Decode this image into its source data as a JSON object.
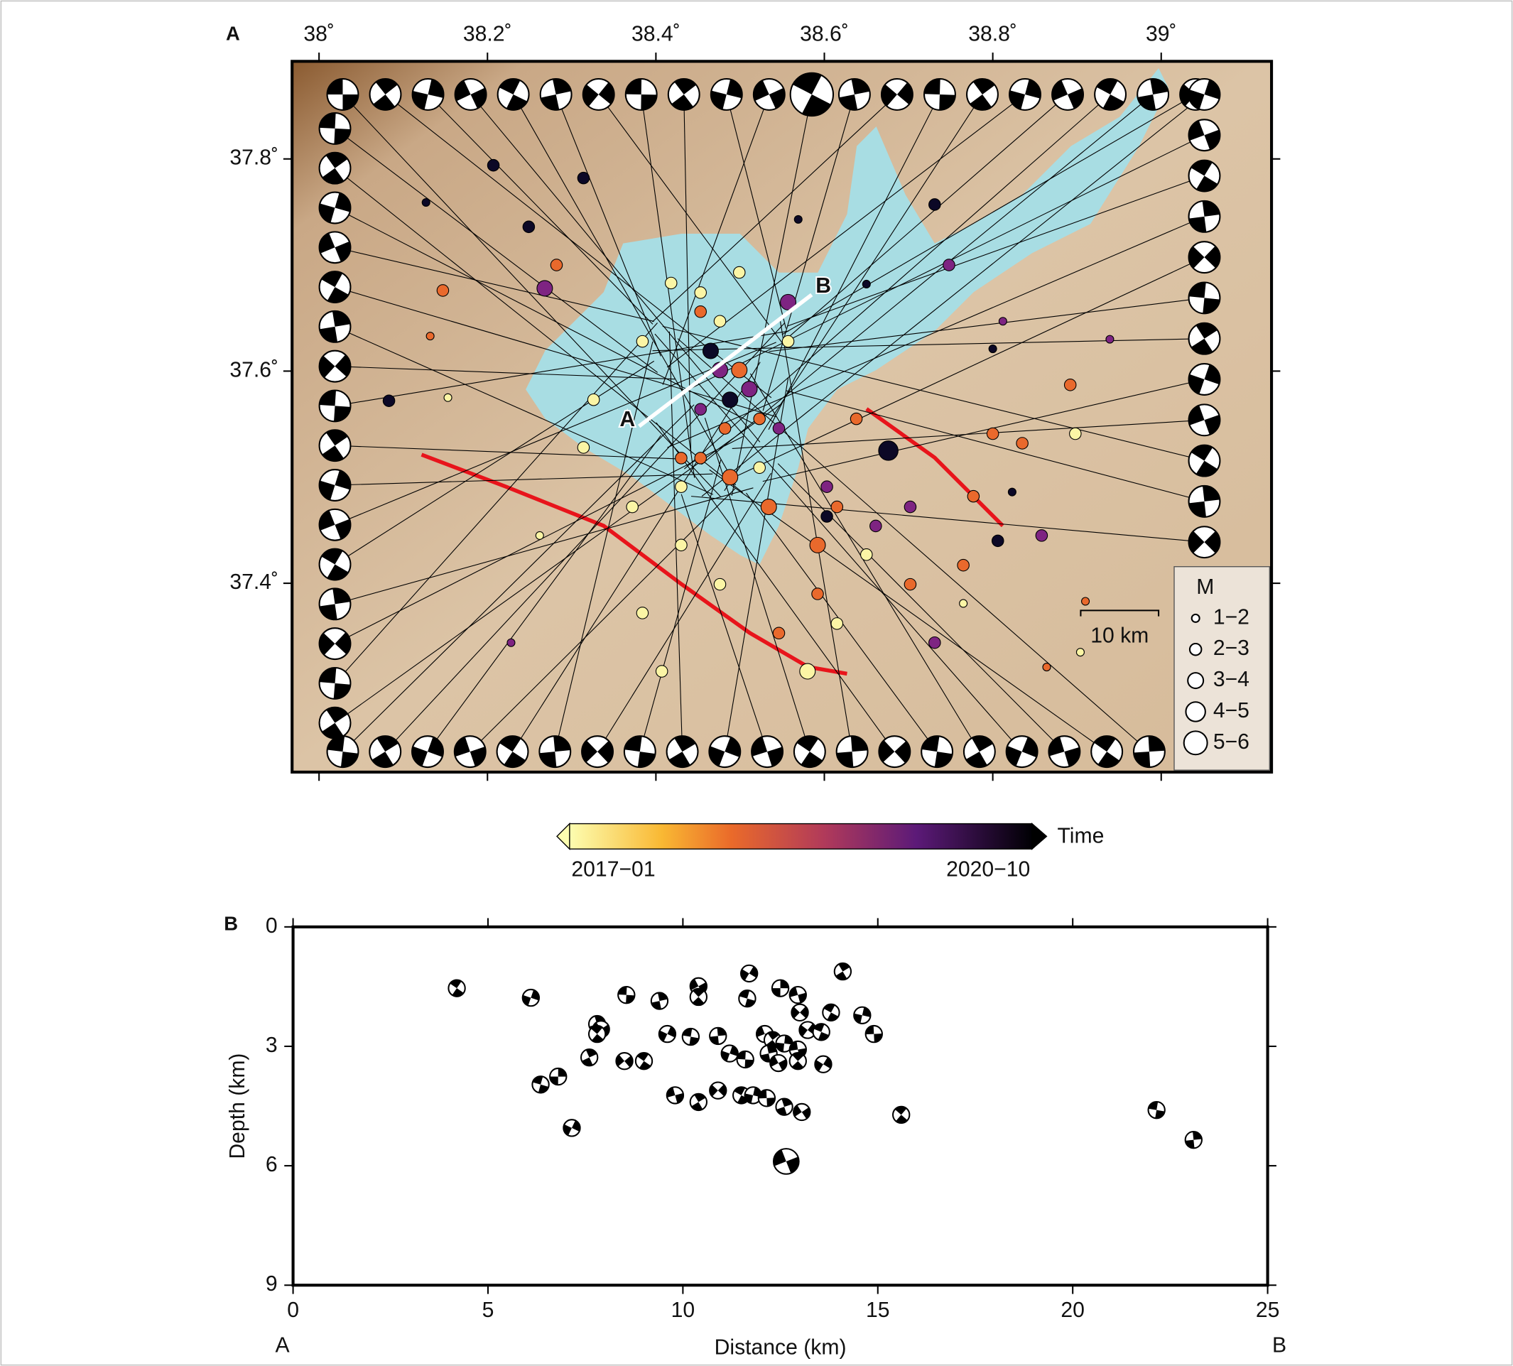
{
  "chart_data": [
    {
      "type": "map",
      "panel_label": "A",
      "xlim": [
        37.968,
        39.131
      ],
      "ylim": [
        37.222,
        37.892
      ],
      "xticks": [
        {
          "value": 38,
          "label": "38˚"
        },
        {
          "value": 38.2,
          "label": "38.2˚"
        },
        {
          "value": 38.4,
          "label": "38.4˚"
        },
        {
          "value": 38.6,
          "label": "38.6˚"
        },
        {
          "value": 38.8,
          "label": "38.8˚"
        },
        {
          "value": 39,
          "label": "39˚"
        }
      ],
      "yticks": [
        {
          "value": 37.4,
          "label": "37.4˚"
        },
        {
          "value": 37.6,
          "label": "37.6˚"
        },
        {
          "value": 37.8,
          "label": "37.8˚"
        }
      ],
      "grid": false,
      "series": [
        {
          "color": "#fbf5a5",
          "x": [
            38.418,
            38.384,
            38.326,
            38.314,
            38.372,
            38.43,
            38.476,
            38.407,
            38.58,
            38.615,
            38.65,
            38.453,
            38.499,
            38.557,
            38.262,
            38.153,
            38.523,
            38.476,
            38.43,
            38.384,
            38.765,
            38.904,
            38.898
          ],
          "y": [
            37.683,
            37.628,
            37.573,
            37.528,
            37.472,
            37.436,
            37.399,
            37.317,
            37.317,
            37.362,
            37.427,
            37.674,
            37.693,
            37.628,
            37.445,
            37.575,
            37.509,
            37.647,
            37.491,
            37.372,
            37.381,
            37.335,
            37.541
          ],
          "sizes": [
            2.5,
            2.5,
            2.5,
            2.5,
            2.5,
            2.5,
            2.5,
            2.5,
            3.5,
            2.5,
            2.5,
            2.5,
            2.5,
            2.5,
            1.5,
            1.5,
            2.5,
            2.5,
            2.5,
            2.5,
            1.5,
            1.5,
            2.5
          ]
        },
        {
          "color": "#e9692c",
          "x": [
            38.453,
            38.499,
            38.482,
            38.43,
            38.534,
            38.592,
            38.592,
            38.546,
            38.892,
            38.835,
            38.777,
            38.8,
            38.147,
            38.132,
            38.282,
            38.91,
            38.864,
            38.453,
            38.523,
            38.488,
            38.638,
            38.615,
            38.702,
            38.765
          ],
          "y": [
            37.656,
            37.601,
            37.546,
            37.518,
            37.472,
            37.436,
            37.39,
            37.353,
            37.587,
            37.532,
            37.482,
            37.541,
            37.676,
            37.633,
            37.7,
            37.383,
            37.321,
            37.518,
            37.555,
            37.5,
            37.555,
            37.472,
            37.399,
            37.417
          ],
          "sizes": [
            2.5,
            3.5,
            2.5,
            2.5,
            3.5,
            3.5,
            2.5,
            2.5,
            2.5,
            2.5,
            2.5,
            2.5,
            2.5,
            1.5,
            2.5,
            1.5,
            1.5,
            2.5,
            2.5,
            3.5,
            2.5,
            2.5,
            2.5,
            2.5
          ]
        },
        {
          "color": "#7e2482",
          "x": [
            38.268,
            38.557,
            38.511,
            38.453,
            38.546,
            38.748,
            38.812,
            38.939,
            38.702,
            38.858,
            38.731,
            38.661,
            38.603,
            38.476,
            38.228
          ],
          "y": [
            37.678,
            37.665,
            37.583,
            37.564,
            37.546,
            37.7,
            37.647,
            37.63,
            37.472,
            37.445,
            37.344,
            37.454,
            37.491,
            37.601,
            37.344
          ],
          "sizes": [
            3.5,
            3.5,
            3.5,
            2.5,
            2.5,
            2.5,
            1.5,
            1.5,
            2.5,
            2.5,
            2.5,
            2.5,
            2.5,
            3.5,
            1.5
          ]
        },
        {
          "color": "#0c0826",
          "x": [
            38.676,
            38.207,
            38.314,
            38.249,
            38.127,
            38.731,
            38.806,
            38.8,
            38.603,
            38.569,
            38.465,
            38.488,
            38.083,
            38.65,
            38.823
          ],
          "y": [
            37.525,
            37.794,
            37.782,
            37.736,
            37.759,
            37.757,
            37.44,
            37.621,
            37.463,
            37.743,
            37.619,
            37.573,
            37.572,
            37.682,
            37.486
          ],
          "sizes": [
            4.5,
            2.5,
            2.5,
            2.5,
            1.5,
            2.5,
            2.5,
            1.5,
            2.5,
            1.5,
            3.5,
            3.5,
            2.5,
            1.5,
            1.5
          ]
        }
      ],
      "profile": {
        "x": [
          38.38,
          38.585
        ],
        "y": [
          37.548,
          37.672
        ],
        "labels": [
          "A",
          "B"
        ]
      },
      "scale_bar": "10 km",
      "size_legend": {
        "title": "M",
        "labels": [
          "1−2",
          "2−3",
          "3−4",
          "4−5",
          "5−6"
        ]
      },
      "colorbar": {
        "label": "Time",
        "start": "2017−01",
        "end": "2020−10"
      }
    },
    {
      "type": "scatter",
      "panel_label": "B",
      "x_label": "Distance (km)",
      "y_label": "Depth (km)",
      "profile_labels": [
        "A",
        "B"
      ],
      "xlim": [
        0,
        25
      ],
      "ylim": [
        0,
        9
      ],
      "y_inverted": true,
      "xticks": [
        0,
        5,
        10,
        15,
        20,
        25
      ],
      "yticks": [
        0,
        3,
        6,
        9
      ],
      "grid": false,
      "x": [
        4.2,
        6.1,
        8.55,
        9.4,
        10.4,
        10.4,
        11.7,
        11.65,
        12.5,
        12.95,
        14.1,
        13.0,
        13.8,
        14.6,
        14.9,
        7.8,
        7.9,
        7.8,
        9.6,
        10.2,
        10.9,
        12.1,
        12.3,
        13.2,
        13.55,
        12.6,
        12.95,
        7.6,
        8.5,
        9.0,
        11.2,
        11.6,
        12.2,
        12.45,
        12.95,
        13.6,
        6.35,
        6.8,
        9.8,
        10.4,
        10.9,
        11.5,
        11.8,
        12.15,
        12.6,
        13.05,
        15.6,
        7.15,
        22.15,
        23.1,
        12.65
      ],
      "y": [
        1.54,
        1.78,
        1.71,
        1.86,
        1.49,
        1.76,
        1.17,
        1.8,
        1.54,
        1.71,
        1.12,
        2.15,
        2.15,
        2.22,
        2.69,
        2.44,
        2.57,
        2.69,
        2.69,
        2.76,
        2.74,
        2.69,
        2.84,
        2.59,
        2.64,
        2.93,
        3.08,
        3.28,
        3.37,
        3.37,
        3.18,
        3.33,
        3.18,
        3.42,
        3.37,
        3.45,
        3.96,
        3.76,
        4.23,
        4.4,
        4.11,
        4.23,
        4.23,
        4.3,
        4.52,
        4.65,
        4.72,
        5.05,
        4.6,
        5.35,
        5.89
      ]
    }
  ]
}
